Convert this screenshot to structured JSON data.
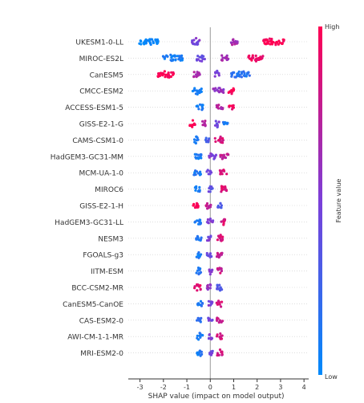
{
  "chart_data": {
    "type": "scatter",
    "xlabel": "SHAP value (impact on model output)",
    "xlim": [
      -3.5,
      4.2
    ],
    "xticks": [
      "-3",
      "-2",
      "-1",
      "0",
      "1",
      "2",
      "3",
      "4"
    ],
    "colorbar": {
      "label": "Feature value",
      "high": "High",
      "low": "Low",
      "colors": [
        "#008afb",
        "#ff0052"
      ]
    },
    "features": [
      {
        "name": "UKESM1-0-LL",
        "groups": [
          {
            "x": -2.6,
            "w": 0.85,
            "v": 0.0
          },
          {
            "x": -0.6,
            "w": 0.35,
            "v": 0.5
          },
          {
            "x": 1.0,
            "w": 0.35,
            "v": 0.65
          },
          {
            "x": 2.7,
            "w": 0.9,
            "v": 1.0
          }
        ]
      },
      {
        "name": "MIROC-ES2L",
        "groups": [
          {
            "x": -1.6,
            "w": 0.9,
            "v": 0.1
          },
          {
            "x": -0.4,
            "w": 0.35,
            "v": 0.45
          },
          {
            "x": 0.6,
            "w": 0.35,
            "v": 0.65
          },
          {
            "x": 1.9,
            "w": 0.7,
            "v": 0.95
          }
        ]
      },
      {
        "name": "CanESM5",
        "groups": [
          {
            "x": -1.9,
            "w": 0.7,
            "v": 1.0
          },
          {
            "x": -0.6,
            "w": 0.3,
            "v": 0.7
          },
          {
            "x": 0.3,
            "w": 0.2,
            "v": 0.5
          },
          {
            "x": 1.3,
            "w": 0.8,
            "v": 0.15
          }
        ]
      },
      {
        "name": "CMCC-ESM2",
        "groups": [
          {
            "x": -0.55,
            "w": 0.4,
            "v": 0.1
          },
          {
            "x": 0.35,
            "w": 0.45,
            "v": 0.6
          },
          {
            "x": 0.9,
            "w": 0.25,
            "v": 1.0
          }
        ]
      },
      {
        "name": "ACCESS-ESM1-5",
        "groups": [
          {
            "x": -0.45,
            "w": 0.3,
            "v": 0.1
          },
          {
            "x": 0.4,
            "w": 0.3,
            "v": 0.7
          },
          {
            "x": 0.9,
            "w": 0.2,
            "v": 0.95
          }
        ]
      },
      {
        "name": "GISS-E2-1-G",
        "groups": [
          {
            "x": -0.75,
            "w": 0.25,
            "v": 1.0
          },
          {
            "x": -0.25,
            "w": 0.2,
            "v": 0.75
          },
          {
            "x": 0.3,
            "w": 0.2,
            "v": 0.45
          },
          {
            "x": 0.65,
            "w": 0.25,
            "v": 0.1
          }
        ]
      },
      {
        "name": "CAMS-CSM1-0",
        "groups": [
          {
            "x": -0.6,
            "w": 0.2,
            "v": 0.1
          },
          {
            "x": -0.15,
            "w": 0.2,
            "v": 0.3
          },
          {
            "x": 0.4,
            "w": 0.4,
            "v": 0.85
          }
        ]
      },
      {
        "name": "HadGEM3-GC31-MM",
        "groups": [
          {
            "x": -0.55,
            "w": 0.35,
            "v": 0.1
          },
          {
            "x": 0.1,
            "w": 0.3,
            "v": 0.5
          },
          {
            "x": 0.6,
            "w": 0.35,
            "v": 0.75
          }
        ]
      },
      {
        "name": "MCM-UA-1-0",
        "groups": [
          {
            "x": -0.55,
            "w": 0.3,
            "v": 0.1
          },
          {
            "x": -0.05,
            "w": 0.2,
            "v": 0.5
          },
          {
            "x": 0.55,
            "w": 0.35,
            "v": 0.85
          }
        ]
      },
      {
        "name": "MIROC6",
        "groups": [
          {
            "x": -0.55,
            "w": 0.25,
            "v": 0.1
          },
          {
            "x": 0.0,
            "w": 0.2,
            "v": 0.4
          },
          {
            "x": 0.55,
            "w": 0.3,
            "v": 0.85
          }
        ]
      },
      {
        "name": "GISS-E2-1-H",
        "groups": [
          {
            "x": -0.6,
            "w": 0.25,
            "v": 1.0
          },
          {
            "x": -0.1,
            "w": 0.25,
            "v": 0.75
          },
          {
            "x": 0.4,
            "w": 0.2,
            "v": 0.3
          }
        ]
      },
      {
        "name": "HadGEM3-GC31-LL",
        "groups": [
          {
            "x": -0.55,
            "w": 0.3,
            "v": 0.1
          },
          {
            "x": 0.0,
            "w": 0.25,
            "v": 0.5
          },
          {
            "x": 0.5,
            "w": 0.3,
            "v": 0.85
          }
        ]
      },
      {
        "name": "NESM3",
        "groups": [
          {
            "x": -0.5,
            "w": 0.25,
            "v": 0.15
          },
          {
            "x": -0.05,
            "w": 0.2,
            "v": 0.5
          },
          {
            "x": 0.45,
            "w": 0.3,
            "v": 0.85
          }
        ]
      },
      {
        "name": "FGOALS-g3",
        "groups": [
          {
            "x": -0.5,
            "w": 0.25,
            "v": 0.1
          },
          {
            "x": -0.05,
            "w": 0.2,
            "v": 0.4
          },
          {
            "x": 0.4,
            "w": 0.25,
            "v": 0.8
          }
        ]
      },
      {
        "name": "IITM-ESM",
        "groups": [
          {
            "x": -0.5,
            "w": 0.25,
            "v": 0.15
          },
          {
            "x": 0.0,
            "w": 0.2,
            "v": 0.5
          },
          {
            "x": 0.4,
            "w": 0.25,
            "v": 0.8
          }
        ]
      },
      {
        "name": "BCC-CSM2-MR",
        "groups": [
          {
            "x": -0.55,
            "w": 0.3,
            "v": 0.9
          },
          {
            "x": -0.05,
            "w": 0.2,
            "v": 0.6
          },
          {
            "x": 0.4,
            "w": 0.25,
            "v": 0.3
          }
        ]
      },
      {
        "name": "CanESM5-CanOE",
        "groups": [
          {
            "x": -0.45,
            "w": 0.25,
            "v": 0.1
          },
          {
            "x": 0.0,
            "w": 0.2,
            "v": 0.5
          },
          {
            "x": 0.4,
            "w": 0.25,
            "v": 0.85
          }
        ]
      },
      {
        "name": "CAS-ESM2-0",
        "groups": [
          {
            "x": -0.45,
            "w": 0.25,
            "v": 0.15
          },
          {
            "x": 0.0,
            "w": 0.2,
            "v": 0.45
          },
          {
            "x": 0.4,
            "w": 0.25,
            "v": 0.8
          }
        ]
      },
      {
        "name": "AWI-CM-1-1-MR",
        "groups": [
          {
            "x": -0.45,
            "w": 0.25,
            "v": 0.1
          },
          {
            "x": 0.0,
            "w": 0.2,
            "v": 0.5
          },
          {
            "x": 0.4,
            "w": 0.25,
            "v": 0.8
          }
        ]
      },
      {
        "name": "MRI-ESM2-0",
        "groups": [
          {
            "x": -0.45,
            "w": 0.25,
            "v": 0.1
          },
          {
            "x": 0.0,
            "w": 0.2,
            "v": 0.45
          },
          {
            "x": 0.4,
            "w": 0.25,
            "v": 0.8
          }
        ]
      }
    ]
  }
}
